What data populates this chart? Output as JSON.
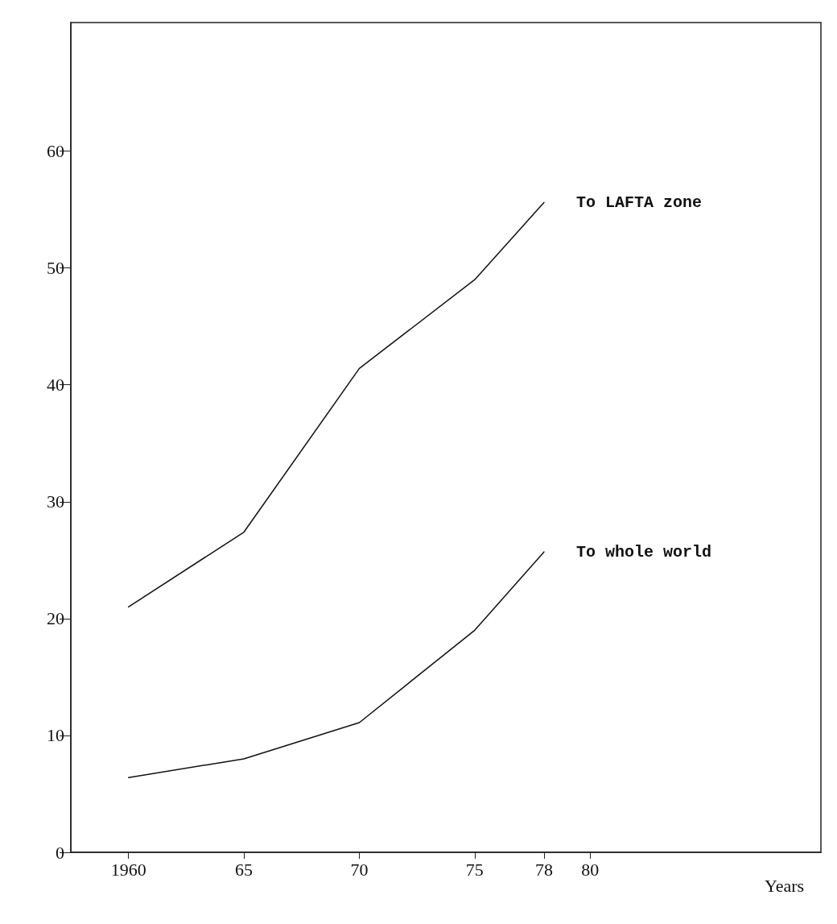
{
  "chart_data": {
    "type": "line",
    "xlabel": "Years",
    "x": [
      1960,
      1965,
      1970,
      1975,
      1978
    ],
    "series": [
      {
        "name": "To LAFTA zone",
        "color": "#111111",
        "values": [
          21,
          27.4,
          41.4,
          49,
          55.6
        ]
      },
      {
        "name": "To whole world",
        "color": "#111111",
        "values": [
          6.4,
          8,
          11.1,
          19,
          25.7
        ]
      }
    ],
    "xlim": [
      1957.5,
      1990
    ],
    "xticks": [
      {
        "value": 1960,
        "label": "1960"
      },
      {
        "value": 1965,
        "label": "65"
      },
      {
        "value": 1970,
        "label": "70"
      },
      {
        "value": 1975,
        "label": "75"
      },
      {
        "value": 1978,
        "label": "78"
      },
      {
        "value": 1980,
        "label": "80"
      }
    ],
    "ylim": [
      0,
      71
    ],
    "yticks": [
      0,
      10,
      20,
      30,
      40,
      50,
      60
    ],
    "grid": false,
    "legend": false,
    "marker": "none",
    "line_style": "solid"
  }
}
